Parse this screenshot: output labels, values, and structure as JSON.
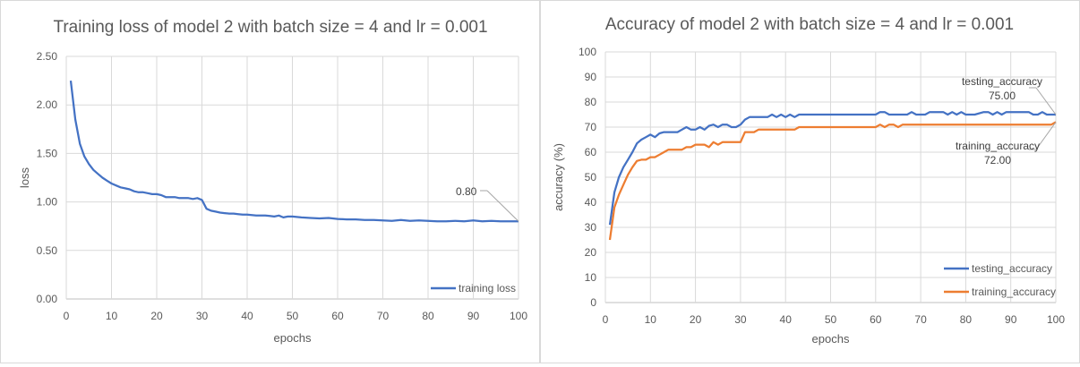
{
  "chart_data": [
    {
      "type": "line",
      "title": "Training loss of model 2 with batch size = 4 and lr = 0.001",
      "xlabel": "epochs",
      "ylabel": "loss",
      "xlim": [
        0,
        100
      ],
      "ylim": [
        0,
        2.5
      ],
      "xticks": [
        "0",
        "10",
        "20",
        "30",
        "40",
        "50",
        "60",
        "70",
        "80",
        "90",
        "100"
      ],
      "yticks": [
        "0.00",
        "0.50",
        "1.00",
        "1.50",
        "2.00",
        "2.50"
      ],
      "grid": true,
      "legend": "bottom-right",
      "series": [
        {
          "name": "training loss",
          "color": "#4472c4",
          "points": [
            [
              1,
              2.25
            ],
            [
              2,
              1.85
            ],
            [
              3,
              1.6
            ],
            [
              4,
              1.47
            ],
            [
              5,
              1.39
            ],
            [
              6,
              1.33
            ],
            [
              7,
              1.29
            ],
            [
              8,
              1.25
            ],
            [
              9,
              1.22
            ],
            [
              10,
              1.19
            ],
            [
              11,
              1.17
            ],
            [
              12,
              1.15
            ],
            [
              13,
              1.14
            ],
            [
              14,
              1.13
            ],
            [
              15,
              1.11
            ],
            [
              16,
              1.1
            ],
            [
              17,
              1.1
            ],
            [
              18,
              1.09
            ],
            [
              19,
              1.08
            ],
            [
              20,
              1.08
            ],
            [
              21,
              1.07
            ],
            [
              22,
              1.05
            ],
            [
              23,
              1.05
            ],
            [
              24,
              1.05
            ],
            [
              25,
              1.04
            ],
            [
              26,
              1.04
            ],
            [
              27,
              1.04
            ],
            [
              28,
              1.03
            ],
            [
              29,
              1.04
            ],
            [
              30,
              1.02
            ],
            [
              31,
              0.93
            ],
            [
              32,
              0.91
            ],
            [
              33,
              0.9
            ],
            [
              34,
              0.89
            ],
            [
              35,
              0.885
            ],
            [
              36,
              0.88
            ],
            [
              37,
              0.88
            ],
            [
              38,
              0.875
            ],
            [
              39,
              0.87
            ],
            [
              40,
              0.87
            ],
            [
              41,
              0.865
            ],
            [
              42,
              0.86
            ],
            [
              43,
              0.86
            ],
            [
              44,
              0.86
            ],
            [
              45,
              0.855
            ],
            [
              46,
              0.85
            ],
            [
              47,
              0.86
            ],
            [
              48,
              0.84
            ],
            [
              49,
              0.85
            ],
            [
              50,
              0.85
            ],
            [
              52,
              0.84
            ],
            [
              54,
              0.835
            ],
            [
              56,
              0.83
            ],
            [
              58,
              0.835
            ],
            [
              60,
              0.825
            ],
            [
              62,
              0.82
            ],
            [
              64,
              0.82
            ],
            [
              66,
              0.815
            ],
            [
              68,
              0.815
            ],
            [
              70,
              0.81
            ],
            [
              72,
              0.805
            ],
            [
              74,
              0.815
            ],
            [
              76,
              0.805
            ],
            [
              78,
              0.81
            ],
            [
              80,
              0.805
            ],
            [
              82,
              0.8
            ],
            [
              84,
              0.8
            ],
            [
              86,
              0.805
            ],
            [
              88,
              0.8
            ],
            [
              90,
              0.81
            ],
            [
              92,
              0.8
            ],
            [
              94,
              0.805
            ],
            [
              96,
              0.8
            ],
            [
              98,
              0.8
            ],
            [
              100,
              0.8
            ]
          ]
        }
      ],
      "annotations": [
        {
          "label": "0.80",
          "x": 100,
          "y": 0.8
        }
      ]
    },
    {
      "type": "line",
      "title": "Accuracy of model 2 with batch size = 4 and lr = 0.001",
      "xlabel": "epochs",
      "ylabel": "accuracy (%)",
      "xlim": [
        0,
        100
      ],
      "ylim": [
        0,
        100
      ],
      "xticks": [
        "0",
        "10",
        "20",
        "30",
        "40",
        "50",
        "60",
        "70",
        "80",
        "90",
        "100"
      ],
      "yticks": [
        "0",
        "10",
        "20",
        "30",
        "40",
        "50",
        "60",
        "70",
        "80",
        "90",
        "100"
      ],
      "grid": true,
      "legend": "bottom-right",
      "series": [
        {
          "name": "testing_accuracy",
          "color": "#4472c4",
          "points": [
            [
              1,
              31
            ],
            [
              2,
              44
            ],
            [
              3,
              50
            ],
            [
              4,
              54
            ],
            [
              5,
              57
            ],
            [
              6,
              60
            ],
            [
              7,
              63.5
            ],
            [
              8,
              65
            ],
            [
              9,
              66
            ],
            [
              10,
              67
            ],
            [
              11,
              66
            ],
            [
              12,
              67.5
            ],
            [
              13,
              68
            ],
            [
              14,
              68
            ],
            [
              15,
              68
            ],
            [
              16,
              68
            ],
            [
              17,
              69
            ],
            [
              18,
              70
            ],
            [
              19,
              69
            ],
            [
              20,
              69
            ],
            [
              21,
              70
            ],
            [
              22,
              69
            ],
            [
              23,
              70.5
            ],
            [
              24,
              71
            ],
            [
              25,
              70
            ],
            [
              26,
              71
            ],
            [
              27,
              71
            ],
            [
              28,
              70
            ],
            [
              29,
              70
            ],
            [
              30,
              71
            ],
            [
              31,
              73
            ],
            [
              32,
              74
            ],
            [
              33,
              74
            ],
            [
              34,
              74
            ],
            [
              35,
              74
            ],
            [
              36,
              74
            ],
            [
              37,
              75
            ],
            [
              38,
              74
            ],
            [
              39,
              75
            ],
            [
              40,
              74
            ],
            [
              41,
              75
            ],
            [
              42,
              74
            ],
            [
              43,
              75
            ],
            [
              45,
              75
            ],
            [
              50,
              75
            ],
            [
              55,
              75
            ],
            [
              60,
              75
            ],
            [
              61,
              76
            ],
            [
              62,
              76
            ],
            [
              63,
              75
            ],
            [
              65,
              75
            ],
            [
              67,
              75
            ],
            [
              68,
              76
            ],
            [
              69,
              75
            ],
            [
              71,
              75
            ],
            [
              72,
              76
            ],
            [
              74,
              76
            ],
            [
              75,
              76
            ],
            [
              76,
              75
            ],
            [
              77,
              76
            ],
            [
              78,
              75
            ],
            [
              79,
              76
            ],
            [
              80,
              75
            ],
            [
              82,
              75
            ],
            [
              84,
              76
            ],
            [
              85,
              76
            ],
            [
              86,
              75
            ],
            [
              87,
              76
            ],
            [
              88,
              75
            ],
            [
              89,
              76
            ],
            [
              91,
              76
            ],
            [
              93,
              76
            ],
            [
              94,
              76
            ],
            [
              95,
              75
            ],
            [
              96,
              75
            ],
            [
              97,
              76
            ],
            [
              98,
              75
            ],
            [
              99,
              75
            ],
            [
              100,
              75
            ]
          ]
        },
        {
          "name": "training_accuracy",
          "color": "#ed7d31",
          "points": [
            [
              1,
              25
            ],
            [
              2,
              38
            ],
            [
              3,
              43
            ],
            [
              4,
              47
            ],
            [
              5,
              51
            ],
            [
              6,
              54
            ],
            [
              7,
              56.5
            ],
            [
              8,
              57
            ],
            [
              9,
              57
            ],
            [
              10,
              58
            ],
            [
              11,
              58
            ],
            [
              12,
              59
            ],
            [
              13,
              60
            ],
            [
              14,
              61
            ],
            [
              15,
              61
            ],
            [
              16,
              61
            ],
            [
              17,
              61
            ],
            [
              18,
              62
            ],
            [
              19,
              62
            ],
            [
              20,
              63
            ],
            [
              21,
              63
            ],
            [
              22,
              63
            ],
            [
              23,
              62
            ],
            [
              24,
              64
            ],
            [
              25,
              63
            ],
            [
              26,
              64
            ],
            [
              27,
              64
            ],
            [
              28,
              64
            ],
            [
              29,
              64
            ],
            [
              30,
              64
            ],
            [
              31,
              68
            ],
            [
              32,
              68
            ],
            [
              33,
              68
            ],
            [
              34,
              69
            ],
            [
              35,
              69
            ],
            [
              40,
              69
            ],
            [
              42,
              69
            ],
            [
              43,
              70
            ],
            [
              45,
              70
            ],
            [
              50,
              70
            ],
            [
              55,
              70
            ],
            [
              59,
              70
            ],
            [
              60,
              70
            ],
            [
              61,
              71
            ],
            [
              62,
              70
            ],
            [
              63,
              71
            ],
            [
              64,
              71
            ],
            [
              65,
              70
            ],
            [
              66,
              71
            ],
            [
              68,
              71
            ],
            [
              70,
              71
            ],
            [
              75,
              71
            ],
            [
              80,
              71
            ],
            [
              85,
              71
            ],
            [
              90,
              71
            ],
            [
              95,
              71
            ],
            [
              99,
              71
            ],
            [
              100,
              72
            ]
          ]
        }
      ],
      "annotations": [
        {
          "label": "testing_accuracy",
          "value": "75.00",
          "x": 100,
          "y": 75
        },
        {
          "label": "training_accuracy",
          "value": "72.00",
          "x": 100,
          "y": 72
        }
      ]
    }
  ]
}
